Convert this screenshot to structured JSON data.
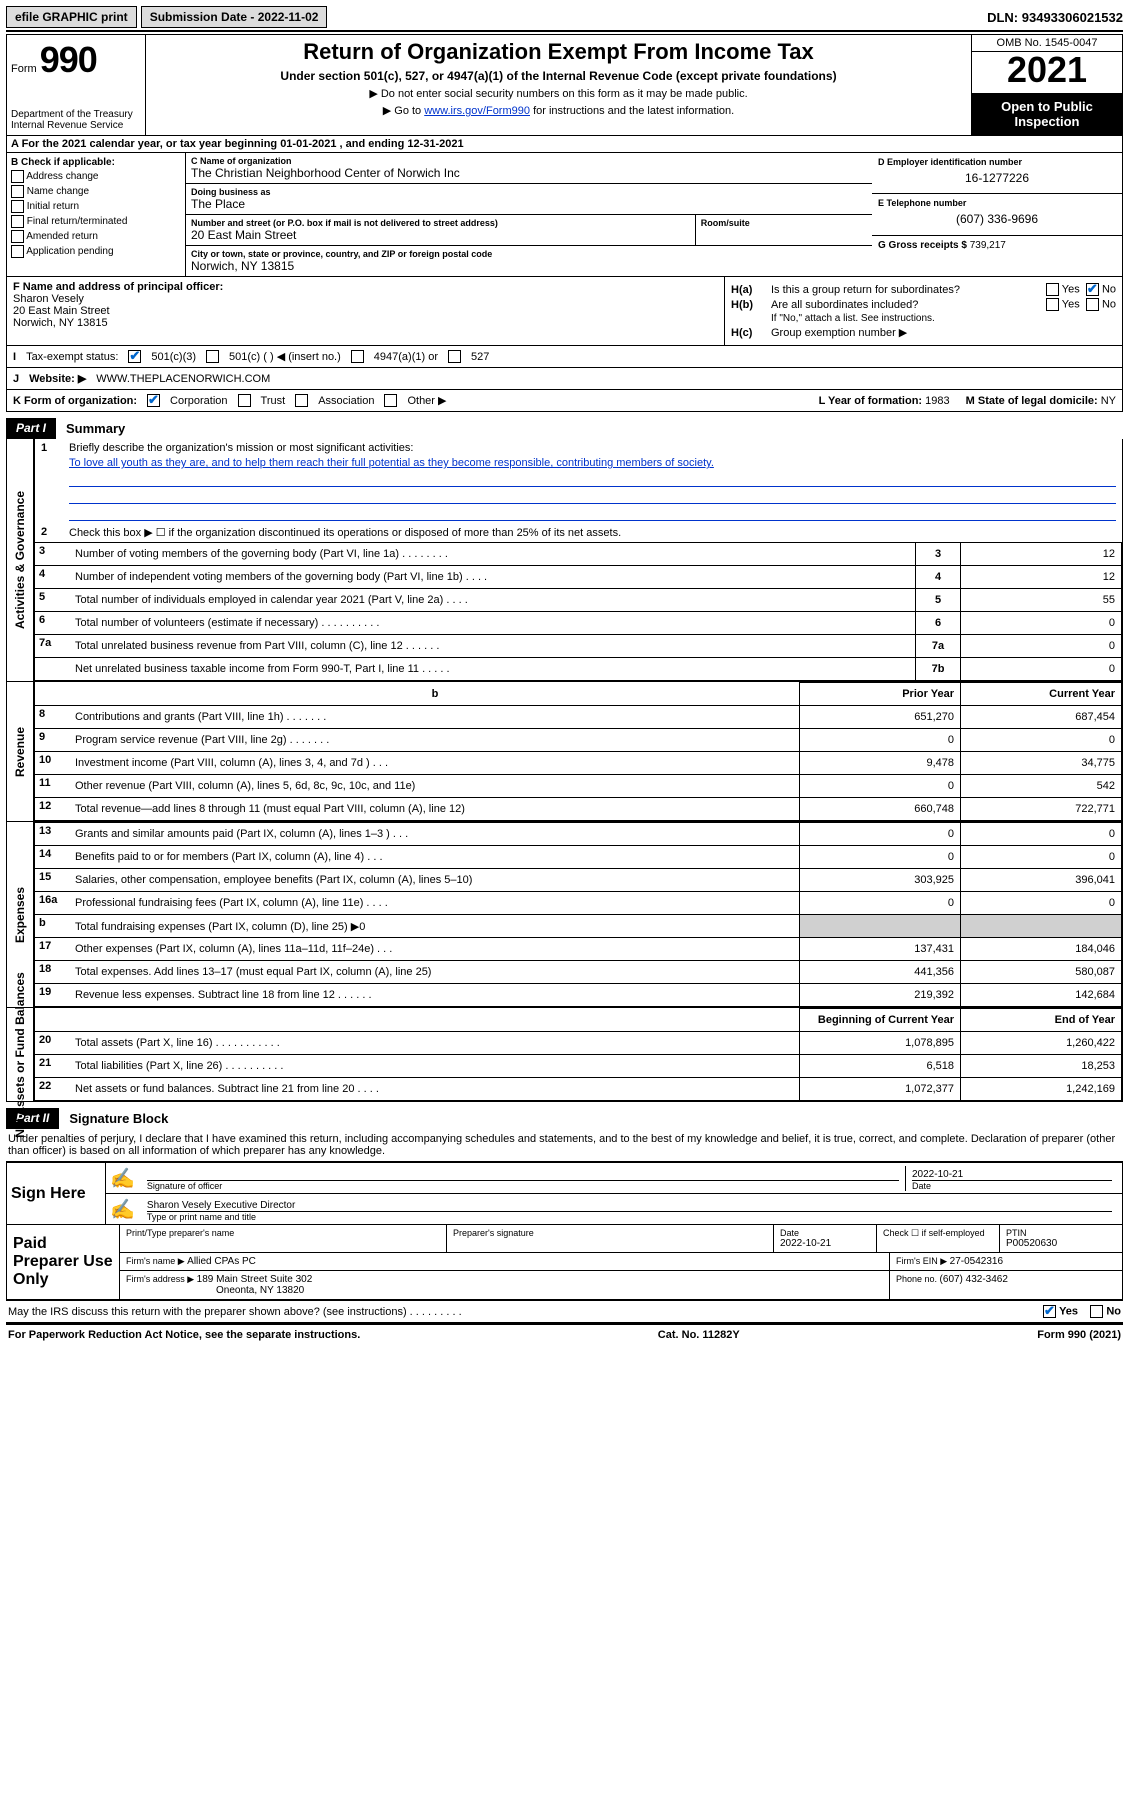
{
  "topbar": {
    "efile": "efile GRAPHIC print",
    "submission_label": "Submission Date - ",
    "submission_date": "2022-11-02",
    "dln_label": "DLN: ",
    "dln": "93493306021532"
  },
  "header": {
    "form_word": "Form",
    "form_no": "990",
    "dept": "Department of the Treasury",
    "irs": "Internal Revenue Service",
    "title": "Return of Organization Exempt From Income Tax",
    "sub": "Under section 501(c), 527, or 4947(a)(1) of the Internal Revenue Code (except private foundations)",
    "note1": "▶ Do not enter social security numbers on this form as it may be made public.",
    "note2_pre": "▶ Go to ",
    "note2_link": "www.irs.gov/Form990",
    "note2_post": " for instructions and the latest information.",
    "omb": "OMB No. 1545-0047",
    "year": "2021",
    "open": "Open to Public Inspection"
  },
  "rowA": "A For the 2021 calendar year, or tax year beginning 01-01-2021   , and ending 12-31-2021",
  "colB": {
    "label": "B Check if applicable:",
    "opts": [
      "Address change",
      "Name change",
      "Initial return",
      "Final return/terminated",
      "Amended return",
      "Application pending"
    ]
  },
  "colC": {
    "name_label": "C Name of organization",
    "name": "The Christian Neighborhood Center of Norwich Inc",
    "dba_label": "Doing business as",
    "dba": "The Place",
    "addr_label": "Number and street (or P.O. box if mail is not delivered to street address)",
    "room_label": "Room/suite",
    "addr": "20 East Main Street",
    "city_label": "City or town, state or province, country, and ZIP or foreign postal code",
    "city": "Norwich, NY  13815"
  },
  "colDE": {
    "d_label": "D Employer identification number",
    "d_val": "16-1277226",
    "e_label": "E Telephone number",
    "e_val": "(607) 336-9696",
    "g_label": "G Gross receipts $ ",
    "g_val": "739,217"
  },
  "colF": {
    "label": "F Name and address of principal officer:",
    "name": "Sharon Vesely",
    "addr1": "20 East Main Street",
    "addr2": "Norwich, NY  13815"
  },
  "colH": {
    "ha_label": "H(a)",
    "ha_text": "Is this a group return for subordinates?",
    "hb_label": "H(b)",
    "hb_text": "Are all subordinates included?",
    "hb_note": "If \"No,\" attach a list. See instructions.",
    "hc_label": "H(c)",
    "hc_text": "Group exemption number ▶",
    "yes": "Yes",
    "no": "No"
  },
  "rowI": {
    "label": "I",
    "text": "Tax-exempt status:",
    "o1": "501(c)(3)",
    "o2": "501(c) (  ) ◀ (insert no.)",
    "o3": "4947(a)(1) or",
    "o4": "527"
  },
  "rowJ": {
    "label": "J",
    "text": "Website: ▶",
    "val": "WWW.THEPLACENORWICH.COM"
  },
  "rowK": {
    "label": "K Form of organization:",
    "o1": "Corporation",
    "o2": "Trust",
    "o3": "Association",
    "o4": "Other ▶",
    "l_label": "L Year of formation: ",
    "l_val": "1983",
    "m_label": "M State of legal domicile: ",
    "m_val": "NY"
  },
  "part1": {
    "num": "Part I",
    "title": "Summary",
    "side1": "Activities & Governance",
    "side2": "Revenue",
    "side3": "Expenses",
    "side4": "Net Assets or Fund Balances",
    "l1": "Briefly describe the organization's mission or most significant activities:",
    "l1v": "To love all youth as they are, and to help them reach their full potential as they become responsible, contributing members of society.",
    "l2": "Check this box ▶ ☐  if the organization discontinued its operations or disposed of more than 25% of its net assets.",
    "rows_gov": [
      {
        "n": "3",
        "t": "Number of voting members of the governing body (Part VI, line 1a)  .   .   .   .   .   .   .   .",
        "b": "3",
        "v": "12"
      },
      {
        "n": "4",
        "t": "Number of independent voting members of the governing body (Part VI, line 1b)  .   .   .   .",
        "b": "4",
        "v": "12"
      },
      {
        "n": "5",
        "t": "Total number of individuals employed in calendar year 2021 (Part V, line 2a)  .   .   .   .",
        "b": "5",
        "v": "55"
      },
      {
        "n": "6",
        "t": "Total number of volunteers (estimate if necessary)  .   .   .   .   .   .   .   .   .   .",
        "b": "6",
        "v": "0"
      },
      {
        "n": "7a",
        "t": "Total unrelated business revenue from Part VIII, column (C), line 12  .   .   .   .   .   .",
        "b": "7a",
        "v": "0"
      },
      {
        "n": "",
        "t": "Net unrelated business taxable income from Form 990-T, Part I, line 11  .   .   .   .   .",
        "b": "7b",
        "v": "0"
      }
    ],
    "col_prior": "Prior Year",
    "col_current": "Current Year",
    "rows_rev": [
      {
        "n": "8",
        "t": "Contributions and grants (Part VIII, line 1h)  .   .   .   .   .   .   .",
        "p": "651,270",
        "c": "687,454"
      },
      {
        "n": "9",
        "t": "Program service revenue (Part VIII, line 2g)  .   .   .   .   .   .   .",
        "p": "0",
        "c": "0"
      },
      {
        "n": "10",
        "t": "Investment income (Part VIII, column (A), lines 3, 4, and 7d )  .   .   .",
        "p": "9,478",
        "c": "34,775"
      },
      {
        "n": "11",
        "t": "Other revenue (Part VIII, column (A), lines 5, 6d, 8c, 9c, 10c, and 11e)",
        "p": "0",
        "c": "542"
      },
      {
        "n": "12",
        "t": "Total revenue—add lines 8 through 11 (must equal Part VIII, column (A), line 12)",
        "p": "660,748",
        "c": "722,771"
      }
    ],
    "rows_exp": [
      {
        "n": "13",
        "t": "Grants and similar amounts paid (Part IX, column (A), lines 1–3 )  .   .   .",
        "p": "0",
        "c": "0"
      },
      {
        "n": "14",
        "t": "Benefits paid to or for members (Part IX, column (A), line 4)  .   .   .",
        "p": "0",
        "c": "0"
      },
      {
        "n": "15",
        "t": "Salaries, other compensation, employee benefits (Part IX, column (A), lines 5–10)",
        "p": "303,925",
        "c": "396,041"
      },
      {
        "n": "16a",
        "t": "Professional fundraising fees (Part IX, column (A), line 11e)  .   .   .   .",
        "p": "0",
        "c": "0"
      },
      {
        "n": "b",
        "t": "Total fundraising expenses (Part IX, column (D), line 25) ▶0",
        "p": "",
        "c": "",
        "shade": true
      },
      {
        "n": "17",
        "t": "Other expenses (Part IX, column (A), lines 11a–11d, 11f–24e)  .   .   .",
        "p": "137,431",
        "c": "184,046"
      },
      {
        "n": "18",
        "t": "Total expenses. Add lines 13–17 (must equal Part IX, column (A), line 25)",
        "p": "441,356",
        "c": "580,087"
      },
      {
        "n": "19",
        "t": "Revenue less expenses. Subtract line 18 from line 12  .   .   .   .   .   .",
        "p": "219,392",
        "c": "142,684"
      }
    ],
    "col_begin": "Beginning of Current Year",
    "col_end": "End of Year",
    "rows_net": [
      {
        "n": "20",
        "t": "Total assets (Part X, line 16)  .   .   .   .   .   .   .   .   .   .   .",
        "p": "1,078,895",
        "c": "1,260,422"
      },
      {
        "n": "21",
        "t": "Total liabilities (Part X, line 26)  .   .   .   .   .   .   .   .   .   .",
        "p": "6,518",
        "c": "18,253"
      },
      {
        "n": "22",
        "t": "Net assets or fund balances. Subtract line 21 from line 20  .   .   .   .",
        "p": "1,072,377",
        "c": "1,242,169"
      }
    ]
  },
  "part2": {
    "num": "Part II",
    "title": "Signature Block",
    "decl": "Under penalties of perjury, I declare that I have examined this return, including accompanying schedules and statements, and to the best of my knowledge and belief, it is true, correct, and complete. Declaration of preparer (other than officer) is based on all information of which preparer has any knowledge."
  },
  "sign": {
    "label": "Sign Here",
    "sig_of_officer": "Signature of officer",
    "date_label": "Date",
    "date": "2022-10-21",
    "name": "Sharon Vesely  Executive Director",
    "name_label": "Type or print name and title"
  },
  "prep": {
    "label": "Paid Preparer Use Only",
    "r1": {
      "c1": "Print/Type preparer's name",
      "c2": "Preparer's signature",
      "c3l": "Date",
      "c3v": "2022-10-21",
      "c4": "Check ☐ if self-employed",
      "c5l": "PTIN",
      "c5v": "P00520630"
    },
    "r2": {
      "c1l": "Firm's name    ▶ ",
      "c1v": "Allied CPAs PC",
      "c2l": "Firm's EIN ▶ ",
      "c2v": "27-0542316"
    },
    "r3": {
      "c1l": "Firm's address ▶ ",
      "c1v": "189 Main Street Suite 302",
      "c1v2": "Oneonta, NY  13820",
      "c2l": "Phone no. ",
      "c2v": "(607) 432-3462"
    }
  },
  "discuss": {
    "text": "May the IRS discuss this return with the preparer shown above? (see instructions)  .   .   .   .   .   .   .   .   .",
    "yes": "Yes",
    "no": "No"
  },
  "footer": {
    "left": "For Paperwork Reduction Act Notice, see the separate instructions.",
    "mid": "Cat. No. 11282Y",
    "right": "Form 990 (2021)"
  }
}
